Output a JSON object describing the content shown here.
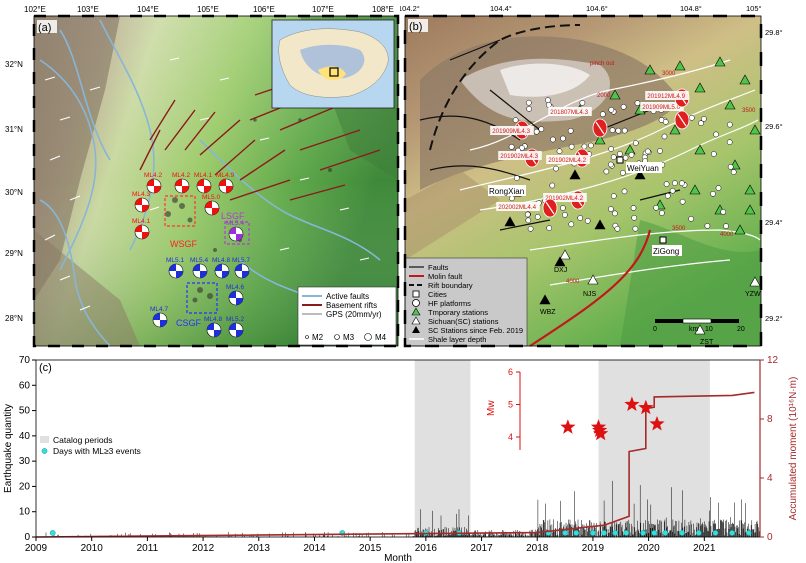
{
  "panel_a": {
    "label": "(a)",
    "lon_ticks": [
      "102°E",
      "103°E",
      "104°E",
      "105°E",
      "106°E",
      "107°E",
      "108°E"
    ],
    "lat_ticks": [
      "32°N",
      "31°N",
      "30°N",
      "29°N",
      "28°N"
    ],
    "zones": [
      "WSGF",
      "LSGF",
      "CSGF"
    ],
    "mechanisms": [
      "ML4.2",
      "ML4.2",
      "ML4.1",
      "ML4.9",
      "ML4.3",
      "ML5.0",
      "ML4.1",
      "ML5.4",
      "ML5.1",
      "ML5.4",
      "ML4.8",
      "ML5.7",
      "ML4.6",
      "ML4.7",
      "ML4.8",
      "ML5.2"
    ],
    "legend": {
      "active_faults": "Active faults",
      "basement_rifts": "Basement rifts",
      "gps": "GPS (20mm/yr)",
      "m2": "M2",
      "m3": "M3",
      "m4": "M4"
    }
  },
  "panel_b": {
    "label": "(b)",
    "lon_ticks": [
      "104.2°",
      "104.4°",
      "104.6°",
      "104.8°",
      "105°"
    ],
    "lat_ticks": [
      "29.8°",
      "29.6°",
      "29.4°",
      "29.2°"
    ],
    "cities": [
      "RongXian",
      "WeiYuan",
      "ZiGong"
    ],
    "stations": [
      "DXJ",
      "NJS",
      "WBZ",
      "YZW",
      "ZST"
    ],
    "event_labels": [
      "201909ML4.3",
      "201807ML4.3",
      "201902ML4.3",
      "201902ML4.2",
      "201902ML4.2",
      "202002ML4.4",
      "201909ML5.0",
      "201912ML4.9"
    ],
    "contour_labels": [
      "pinch out",
      "2000",
      "3000",
      "3500",
      "4000",
      "4000",
      "3500"
    ],
    "scale": {
      "values": [
        "0",
        "10",
        "20"
      ],
      "unit": "km"
    },
    "legend": {
      "faults": "Faults",
      "molin": "Molin fault",
      "rift": "Rift boundary",
      "cities": "Cities",
      "hf": "HF platforms",
      "temp": "Tmporary stations",
      "sichuan": "Sichuan(SC) stations",
      "sc2019": "SC Stations since Feb. 2019",
      "shale": "Shale layer depth"
    }
  },
  "panel_c": {
    "label": "(c)",
    "xlabel": "Month",
    "ylabel_left": "Earthquake quantity",
    "ylabel_right": "Accumulated moment (10¹⁶N·m)",
    "mw_label": "Mw",
    "x_ticks": [
      "2009",
      "2010",
      "2011",
      "2012",
      "2013",
      "2014",
      "2015",
      "2016",
      "2017",
      "2018",
      "2019",
      "2020",
      "2021"
    ],
    "y_left_ticks": [
      "0",
      "10",
      "20",
      "30",
      "40",
      "50",
      "60",
      "70"
    ],
    "y_right_ticks": [
      "0",
      "4",
      "8",
      "12"
    ],
    "mw_ticks": [
      "4",
      "5",
      "6"
    ],
    "legend": {
      "catalog": "Catalog periods",
      "days": "Days with ML≥3 events"
    }
  },
  "colors": {
    "rift": "#a01c1c",
    "gps": "#ffffff",
    "faults": "#87b6d6",
    "moment": "#a52a2a",
    "star": "#dd1111",
    "cyan": "#33dede",
    "catalog": "#e0e0e0"
  },
  "chart_data": {
    "type": "bar",
    "xlabel": "Month",
    "ylabel": "Earthquake quantity",
    "ylim": [
      0,
      70
    ],
    "xlim": [
      2009,
      2022
    ],
    "catalog_periods": [
      [
        2015.8,
        2016.8
      ],
      [
        2019.1,
        2021.1
      ]
    ],
    "ml3_days": [
      2009.3,
      2014.5,
      2016.0,
      2016.6,
      2018.2,
      2018.5,
      2018.7,
      2019.0,
      2019.2,
      2019.4,
      2019.6,
      2019.9,
      2020.1,
      2020.3,
      2020.6,
      2020.9,
      2021.2,
      2021.5,
      2021.8
    ],
    "accumulated_moment": {
      "name": "Accumulated moment",
      "x": [
        2009,
        2018.0,
        2019.2,
        2019.65,
        2019.65,
        2019.95,
        2019.95,
        2020.1,
        2020.1,
        2021.5,
        2021.9
      ],
      "y": [
        0,
        0.3,
        0.8,
        1.4,
        5.8,
        6.0,
        8.7,
        8.8,
        9.5,
        9.6,
        9.8
      ],
      "ylim": [
        0,
        12
      ]
    },
    "mw_events": {
      "name": "Mw",
      "x": [
        2018.55,
        2019.1,
        2019.12,
        2019.14,
        2019.7,
        2019.95,
        2020.15
      ],
      "y": [
        4.3,
        4.3,
        4.2,
        4.1,
        5.0,
        4.9,
        4.4
      ],
      "ylim": [
        3.6,
        6
      ]
    }
  }
}
